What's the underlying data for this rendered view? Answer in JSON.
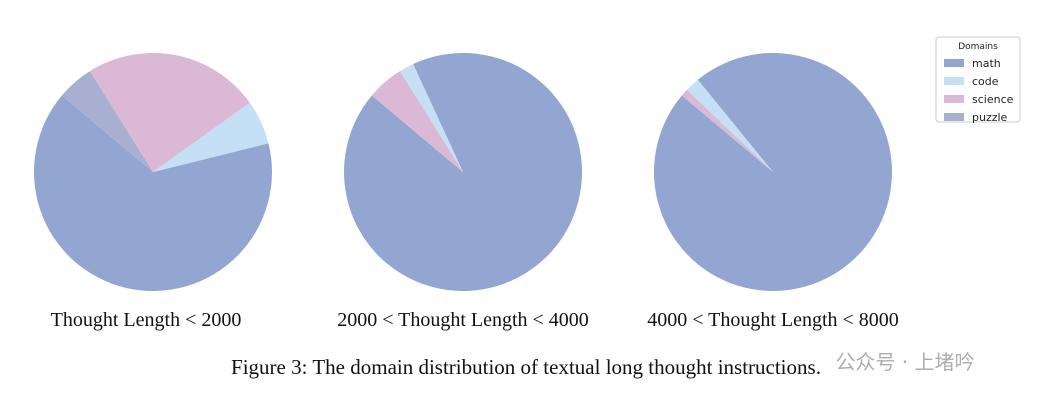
{
  "chart_data": [
    {
      "type": "pie",
      "title": "Thought Length < 2000",
      "startangle": 140,
      "categories": [
        "math",
        "code",
        "science",
        "puzzle"
      ],
      "colors": [
        "#93a6d2",
        "#c5dff4",
        "#dbb9d6",
        "#a9afd1"
      ],
      "values": [
        65,
        6,
        24,
        5
      ]
    },
    {
      "type": "pie",
      "title": "2000 < Thought Length < 4000",
      "startangle": 140,
      "categories": [
        "math",
        "code",
        "science",
        "puzzle"
      ],
      "colors": [
        "#93a6d2",
        "#c5dff4",
        "#dbb9d6",
        "#a9afd1"
      ],
      "values": [
        93,
        2,
        5,
        0
      ]
    },
    {
      "type": "pie",
      "title": "4000 < Thought Length < 8000",
      "startangle": 140,
      "categories": [
        "math",
        "code",
        "science",
        "puzzle"
      ],
      "colors": [
        "#93a6d2",
        "#c5dff4",
        "#dbb9d6",
        "#a9afd1"
      ],
      "values": [
        97,
        2,
        1,
        0
      ]
    }
  ],
  "legend": {
    "title": "Domains",
    "location": "upper right"
  },
  "caption": "Figure 3: The domain distribution of textual long thought instructions.",
  "watermark": "公众号 · 上堵吟"
}
